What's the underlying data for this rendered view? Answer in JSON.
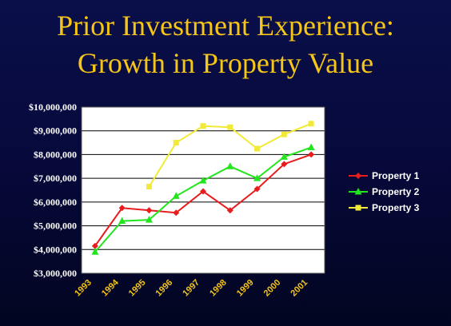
{
  "title_line1": "Prior Investment Experience:",
  "title_line2": "Growth in Property Value",
  "chart_data": {
    "type": "line",
    "title": "Prior Investment Experience: Growth in Property Value",
    "x": [
      "1993",
      "1994",
      "1995",
      "1996",
      "1997",
      "1998",
      "1999",
      "2000",
      "2001"
    ],
    "y_ticks": [
      "$3,000,000",
      "$4,000,000",
      "$5,000,000",
      "$6,000,000",
      "$7,000,000",
      "$8,000,000",
      "$9,000,000",
      "$10,000,000"
    ],
    "ylim": [
      3000000,
      10000000
    ],
    "grid": true,
    "legend": "right",
    "series": [
      {
        "name": "Property 1",
        "color": "#e81c1c",
        "marker": "diamond",
        "values": [
          4150000,
          5750000,
          5650000,
          5550000,
          6450000,
          5650000,
          6550000,
          7600000,
          8000000
        ]
      },
      {
        "name": "Property 2",
        "color": "#22e61c",
        "marker": "triangle",
        "values": [
          3900000,
          5200000,
          5250000,
          6250000,
          6900000,
          7500000,
          7000000,
          7900000,
          8300000
        ]
      },
      {
        "name": "Property 3",
        "color": "#f2ea38",
        "marker": "square",
        "values": [
          null,
          null,
          6650000,
          8500000,
          9200000,
          9150000,
          8250000,
          8850000,
          9300000
        ]
      }
    ]
  }
}
